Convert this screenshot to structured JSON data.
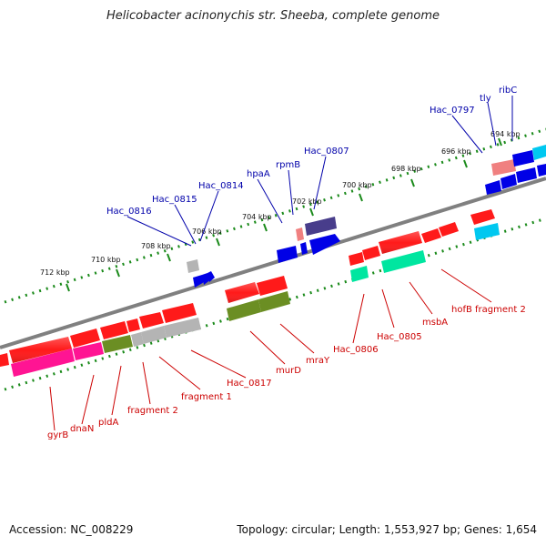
{
  "title": "Helicobacter acinonychis str. Sheeba, complete genome",
  "footer": {
    "accession": "Accession: NC_008229",
    "topology": "Topology: circular; Length: 1,553,927 bp; Genes: 1,654"
  },
  "scale_labels": [
    "694 kbp",
    "696 kbp",
    "698 kbp",
    "700 kbp",
    "702 kbp",
    "704 kbp",
    "706 kbp",
    "708 kbp",
    "710 kbp",
    "712 kbp"
  ],
  "top_genes": [
    "ribC",
    "tly",
    "Hac_0797",
    "Hac_0807",
    "rpmB",
    "hpaA",
    "Hac_0814",
    "Hac_0815",
    "Hac_0816"
  ],
  "bottom_genes": [
    "hofB fragment 2",
    "msbA",
    "Hac_0805",
    "Hac_0806",
    "mraY",
    "murD",
    "Hac_0817",
    "fragment 1",
    "fragment 2",
    "pldA",
    "dnaN",
    "gyrB"
  ],
  "colors": {
    "red": "#ff1a1a",
    "blue": "#0000e6",
    "pink": "#ff1493",
    "olive": "#6b8e23",
    "gray": "#b4b4b4",
    "cyan": "#00c8f0",
    "teal": "#00e6a0",
    "navy": "#483d8b",
    "salmon": "#f08080",
    "green_dots": "#1a8a1a",
    "backbone": "#808080"
  }
}
